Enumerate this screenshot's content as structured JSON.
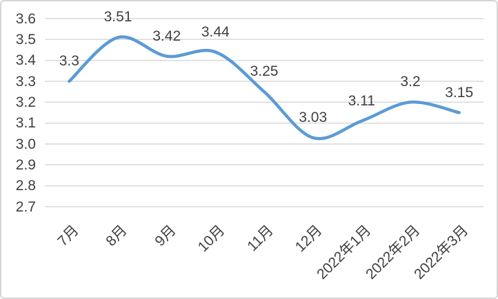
{
  "chart_data": {
    "type": "line",
    "title": "",
    "xlabel": "",
    "ylabel": "",
    "categories": [
      "7月",
      "8月",
      "9月",
      "10月",
      "11月",
      "12月",
      "2022年1月",
      "2022年2月",
      "2022年3月"
    ],
    "values": [
      3.3,
      3.51,
      3.42,
      3.44,
      3.25,
      3.03,
      3.11,
      3.2,
      3.15
    ],
    "data_labels": [
      "3.3",
      "3.51",
      "3.42",
      "3.44",
      "3.25",
      "3.03",
      "3.11",
      "3.2",
      "3.15"
    ],
    "y_tick_labels": [
      "3.6",
      "3.5",
      "3.4",
      "3.3",
      "3.2",
      "3.1",
      "3.0",
      "2.9",
      "2.8",
      "2.7"
    ],
    "y_tick_values": [
      3.6,
      3.5,
      3.4,
      3.3,
      3.2,
      3.1,
      3.0,
      2.9,
      2.8,
      2.7
    ],
    "ylim": [
      2.7,
      3.6
    ],
    "grid": true,
    "smooth": true,
    "legend_position": "none",
    "colors": {
      "line": "#5B9BD5",
      "grid": "#D9D9D9",
      "text": "#3F3F3F",
      "border": "#D5D5D5",
      "background": "#FFFFFF"
    }
  }
}
